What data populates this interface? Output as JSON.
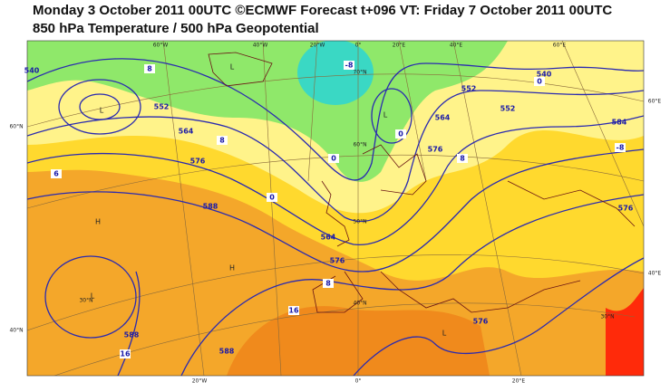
{
  "header": {
    "title": "Monday 3 October 2011 00UTC ©ECMWF Forecast t+096 VT: Friday 7 October 2011 00UTC",
    "subtitle": "850 hPa Temperature / 500 hPa Geopotential"
  },
  "graticule_labels": [
    "60°W",
    "40°W",
    "20°W",
    "0°",
    "20°E",
    "40°E",
    "60°E",
    "60°N",
    "40°N",
    "60°E",
    "40°E",
    "20°W",
    "0°",
    "20°E",
    "70°N",
    "60°N",
    "50°N",
    "40°N",
    "30°N",
    "30°N"
  ],
  "contour_labels": [
    "540",
    "552",
    "564",
    "576",
    "588",
    "588",
    "576",
    "564",
    "552",
    "540",
    "584",
    "576",
    "552",
    "564",
    "576",
    "576",
    "588"
  ],
  "temperature_labels": [
    "-8",
    "8",
    "6",
    "0",
    "0",
    "8",
    "16",
    "16",
    "0",
    "8",
    "0",
    "-8",
    "8"
  ],
  "pressure_centres": [
    "L",
    "L",
    "L",
    "H",
    "H",
    "L",
    "L"
  ]
}
